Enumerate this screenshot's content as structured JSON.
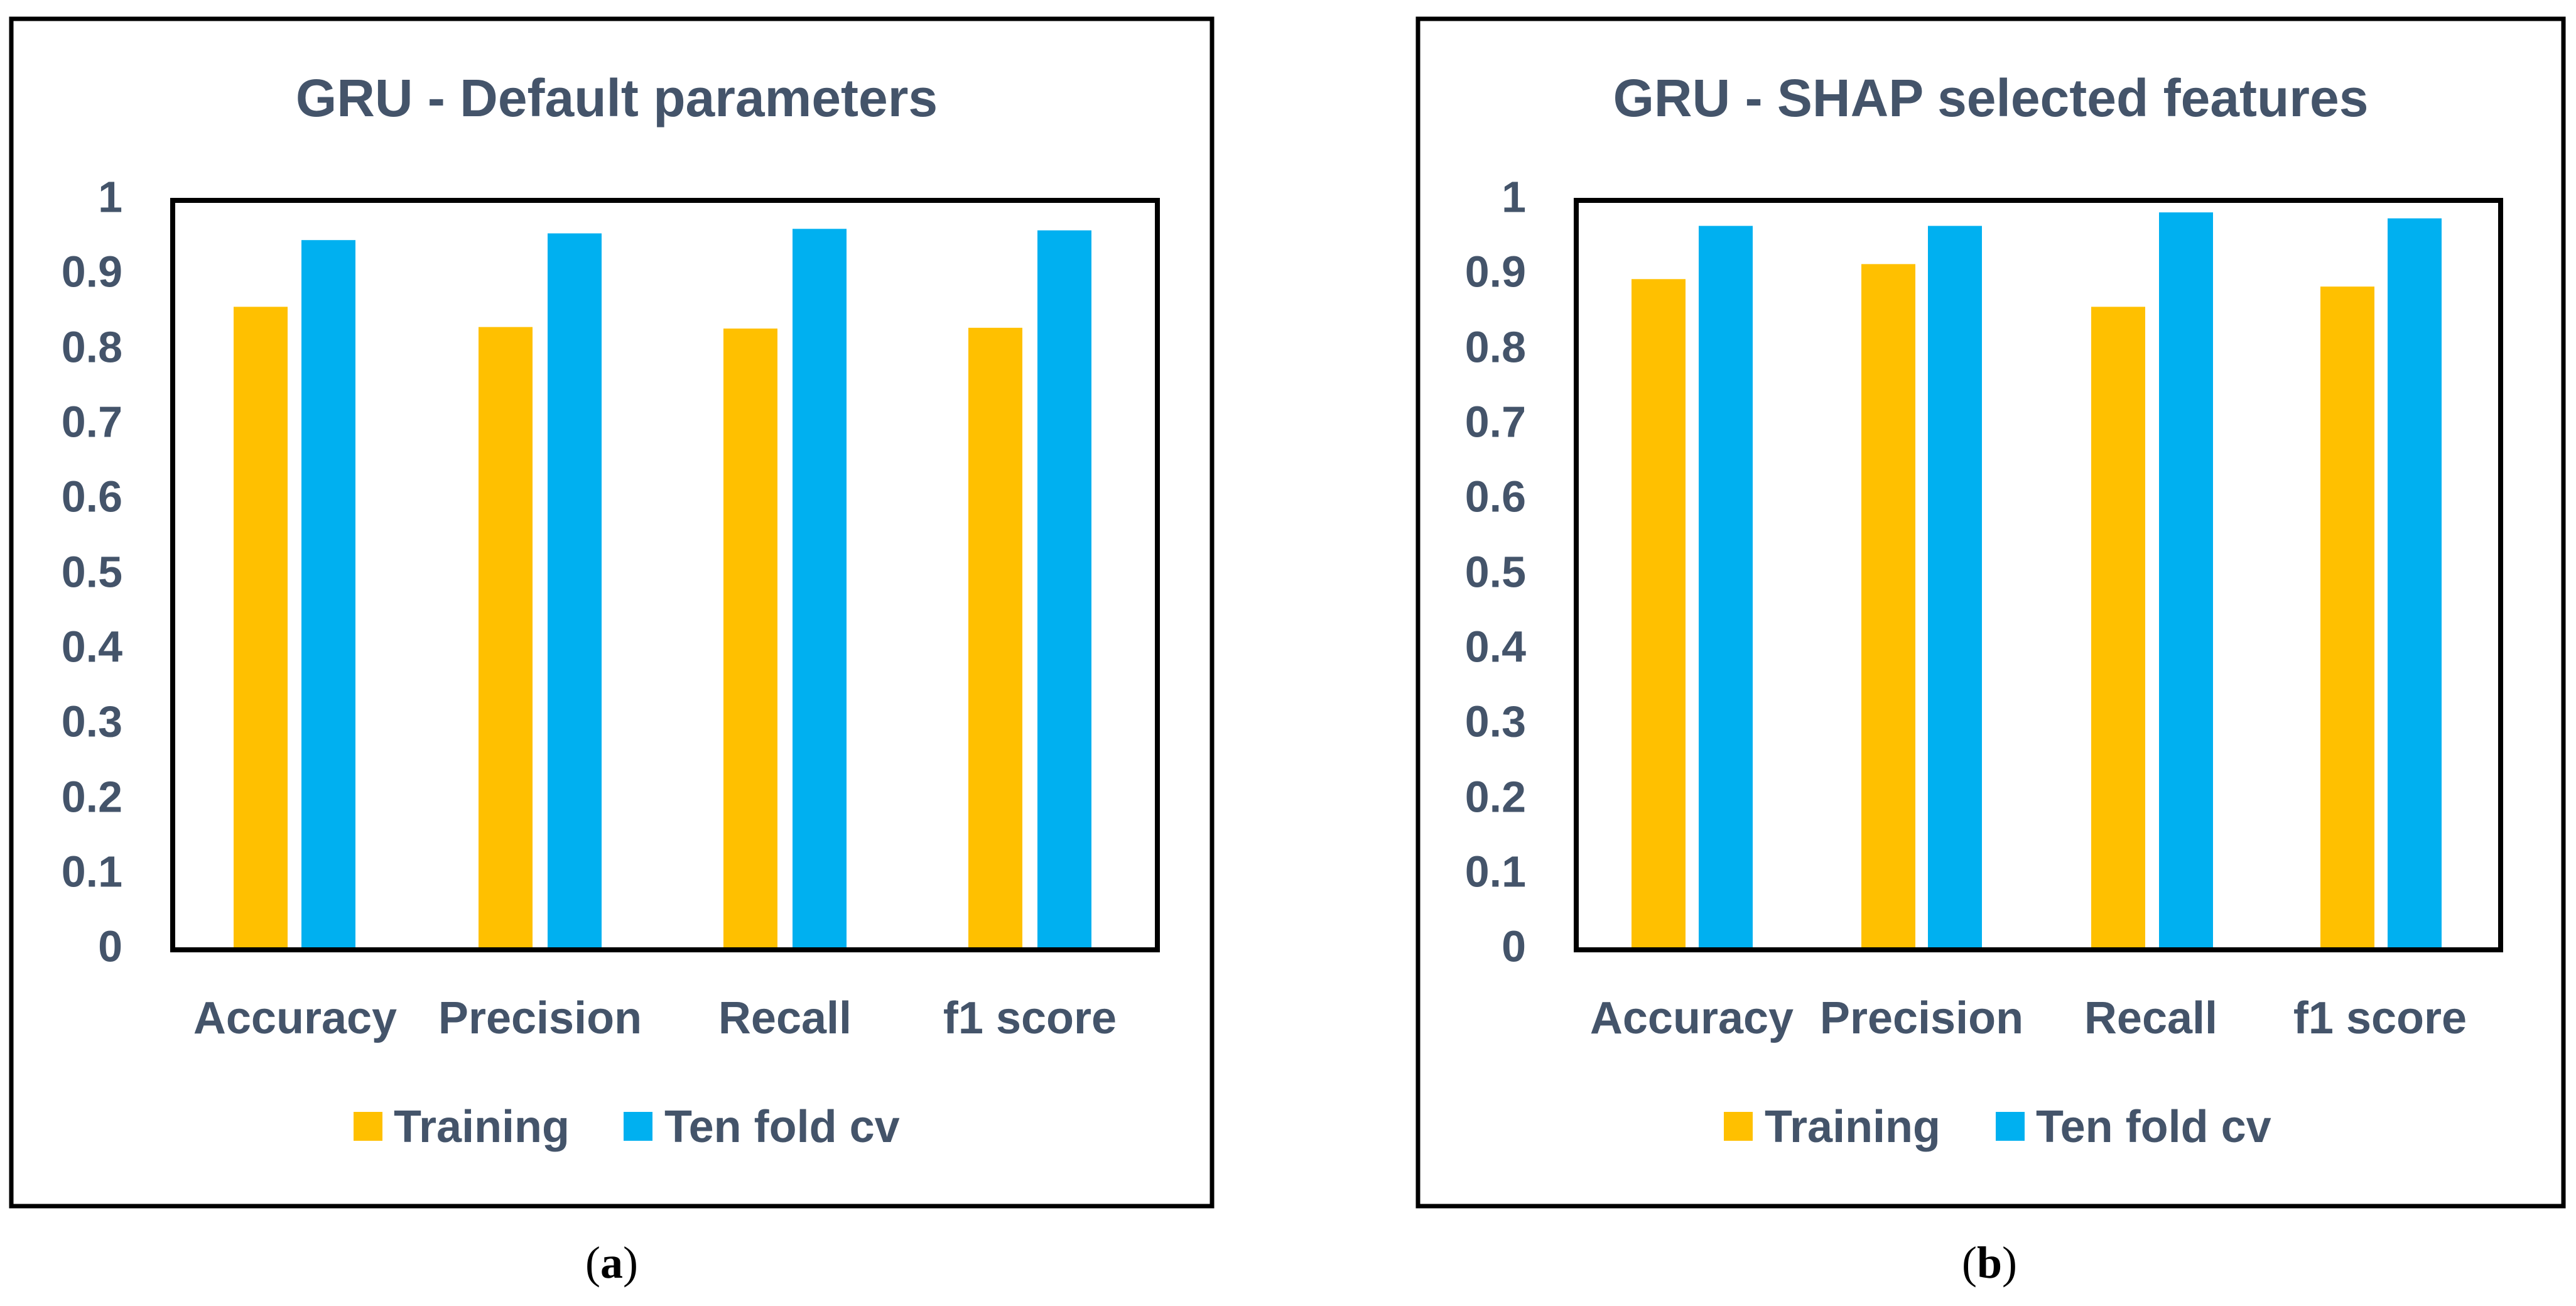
{
  "colors": {
    "training": "#FFC000",
    "cv": "#00B0F0",
    "axis_text": "#44546A",
    "frame": "#000000"
  },
  "chart_data": [
    {
      "type": "bar",
      "title": "GRU - Default parameters",
      "categories": [
        "Accuracy",
        "Precision",
        "Recall",
        "f1 score"
      ],
      "series": [
        {
          "name": "Training",
          "values": [
            0.858,
            0.831,
            0.829,
            0.83
          ]
        },
        {
          "name": "Ten fold cv",
          "values": [
            0.947,
            0.956,
            0.962,
            0.96
          ]
        }
      ],
      "yticks": [
        "0",
        "0.1",
        "0.2",
        "0.3",
        "0.4",
        "0.5",
        "0.6",
        "0.7",
        "0.8",
        "0.9",
        "1"
      ],
      "ylim": [
        0,
        1
      ],
      "xlabel": "",
      "ylabel": "",
      "legend": "bottom",
      "caption_open": "(",
      "caption_letter": "a",
      "caption_close": ")"
    },
    {
      "type": "bar",
      "title": "GRU - SHAP selected features",
      "categories": [
        "Accuracy",
        "Precision",
        "Recall",
        "f1 score"
      ],
      "series": [
        {
          "name": "Training",
          "values": [
            0.895,
            0.915,
            0.858,
            0.885
          ]
        },
        {
          "name": "Ten fold cv",
          "values": [
            0.966,
            0.966,
            0.984,
            0.976
          ]
        }
      ],
      "yticks": [
        "0",
        "0.1",
        "0.2",
        "0.3",
        "0.4",
        "0.5",
        "0.6",
        "0.7",
        "0.8",
        "0.9",
        "1"
      ],
      "ylim": [
        0,
        1
      ],
      "xlabel": "",
      "ylabel": "",
      "legend": "bottom",
      "caption_open": "(",
      "caption_letter": "b",
      "caption_close": ")"
    }
  ]
}
